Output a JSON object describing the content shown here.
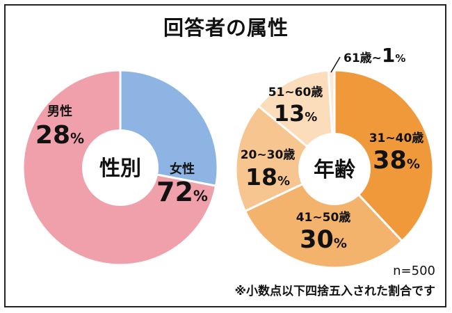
{
  "title": "回答者の属性",
  "notes": {
    "sample_size": "n=500",
    "rounding": "※小数点以下四捨五入された割合です"
  },
  "chart_data": [
    {
      "type": "pie",
      "center_label": "性別",
      "slices": [
        {
          "name": "男性",
          "value": 28,
          "pct_label": "28",
          "color": "#8db4e2"
        },
        {
          "name": "女性",
          "value": 72,
          "pct_label": "72",
          "color": "#f0a0aa"
        }
      ],
      "percent_symbol": "%"
    },
    {
      "type": "pie",
      "center_label": "年齢",
      "slices": [
        {
          "name": "31~40歳",
          "value": 38,
          "pct_label": "38",
          "color": "#f0993b"
        },
        {
          "name": "41~50歳",
          "value": 30,
          "pct_label": "30",
          "color": "#f4b36d"
        },
        {
          "name": "20~30歳",
          "value": 18,
          "pct_label": "18",
          "color": "#f7c690"
        },
        {
          "name": "51~60歳",
          "value": 13,
          "pct_label": "13",
          "color": "#fbdcbb"
        },
        {
          "name": "61歳~",
          "value": 1,
          "pct_label": "1",
          "color": "#fde9d6"
        }
      ],
      "percent_symbol": "%"
    }
  ]
}
